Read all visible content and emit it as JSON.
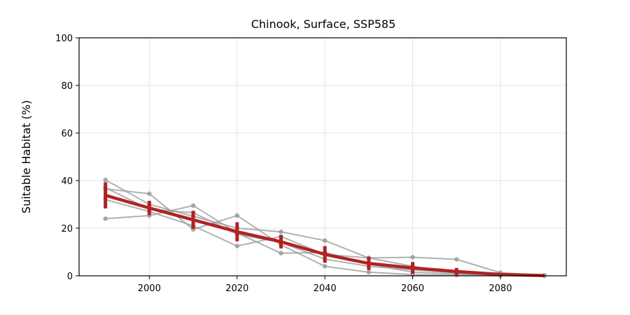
{
  "chart_data": {
    "type": "line",
    "title": "Chinook, Surface, SSP585",
    "xlabel": "",
    "ylabel": "Suitable Habitat (%)",
    "xlim": [
      1984,
      2095
    ],
    "ylim": [
      0,
      100
    ],
    "xticks": [
      2000,
      2020,
      2040,
      2060,
      2080
    ],
    "yticks": [
      0,
      20,
      40,
      60,
      80,
      100
    ],
    "grid": true,
    "x": [
      1990,
      2000,
      2010,
      2020,
      2030,
      2040,
      2050,
      2060,
      2070,
      2080,
      2090
    ],
    "ensemble_members": [
      {
        "values": [
          40.3,
          30.0,
          25.0,
          20.0,
          18.5,
          14.8,
          7.5,
          7.8,
          6.9,
          1.3,
          0.2
        ]
      },
      {
        "values": [
          24.0,
          25.3,
          29.5,
          18.0,
          9.5,
          9.8,
          5.0,
          1.5,
          0.8,
          0.3,
          0.1
        ]
      },
      {
        "values": [
          36.5,
          34.5,
          19.5,
          25.3,
          13.0,
          4.0,
          1.5,
          0.5,
          0.3,
          0.1,
          0.0
        ]
      },
      {
        "values": [
          32.0,
          27.0,
          21.0,
          12.5,
          16.5,
          9.0,
          7.5,
          4.0,
          1.0,
          0.5,
          0.1
        ]
      },
      {
        "values": [
          37.0,
          28.0,
          26.5,
          17.5,
          14.0,
          7.0,
          4.0,
          2.5,
          1.3,
          0.4,
          0.1
        ]
      }
    ],
    "mean": {
      "values": [
        33.8,
        28.5,
        23.5,
        18.5,
        14.3,
        9.0,
        5.2,
        3.3,
        1.8,
        0.6,
        0.1
      ],
      "error": [
        5.5,
        3.0,
        3.8,
        4.0,
        2.8,
        3.5,
        2.8,
        2.5,
        1.5,
        0.5,
        0.1
      ]
    },
    "colors": {
      "mean": "#b22222",
      "ensemble": "#9e9e9e",
      "grid": "#e3e3e3",
      "axis": "#000000"
    }
  }
}
